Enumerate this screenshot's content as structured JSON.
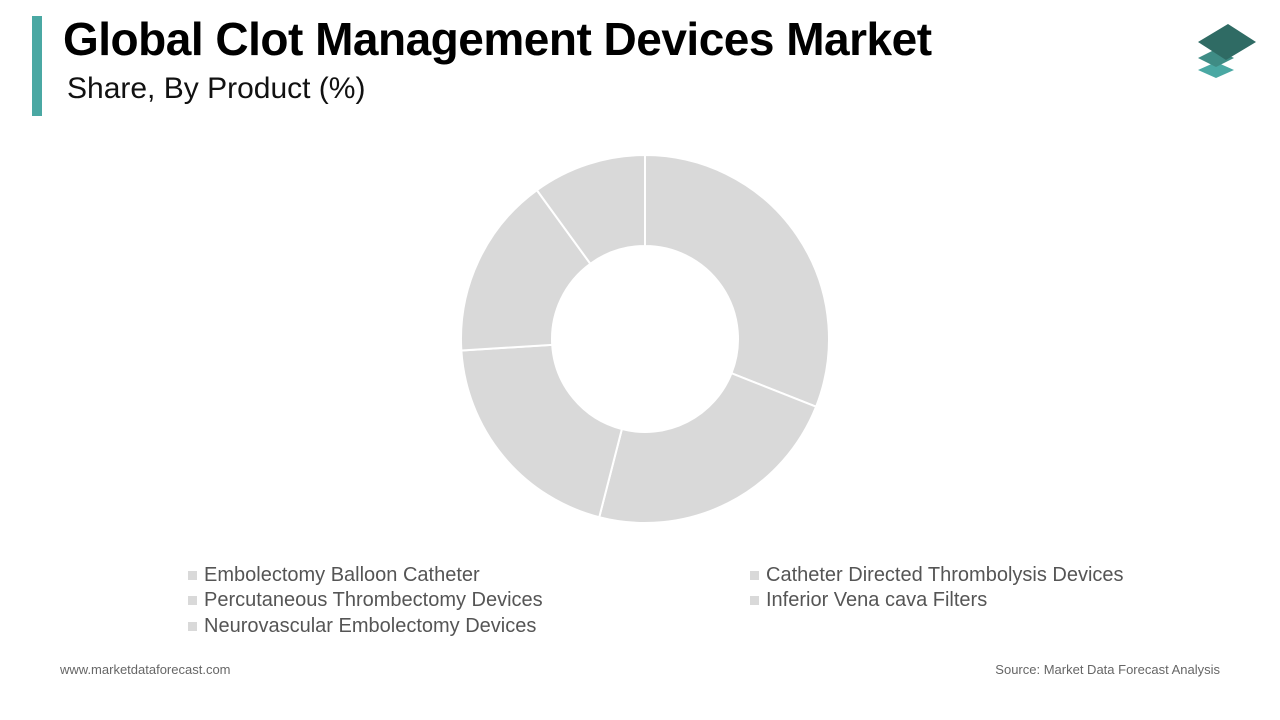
{
  "header": {
    "title": "Global Clot Management Devices Market",
    "subtitle": "Share, By Product (%)"
  },
  "brand": {
    "logo_icon": "stacked-layers-icon",
    "accent_color": "#4aa8a3",
    "logo_colors": [
      "#2f6b64",
      "#3f8c85",
      "#4aa8a3"
    ]
  },
  "chart_data": {
    "type": "pie",
    "variant": "donut",
    "title": "",
    "categories": [
      "Embolectomy Balloon Catheter",
      "Catheter Directed Thrombolysis Devices",
      "Percutaneous Thrombectomy Devices",
      "Inferior Vena cava Filters",
      "Neurovascular Embolectomy Devices"
    ],
    "values": [
      31,
      23,
      20,
      16,
      10
    ],
    "unit": "%",
    "slice_color": "#d9d9d9",
    "separator_color": "#ffffff",
    "legend_placement": "bottom"
  },
  "footer": {
    "website": "www.marketdataforecast.com",
    "source": "Source: Market Data Forecast Analysis"
  }
}
